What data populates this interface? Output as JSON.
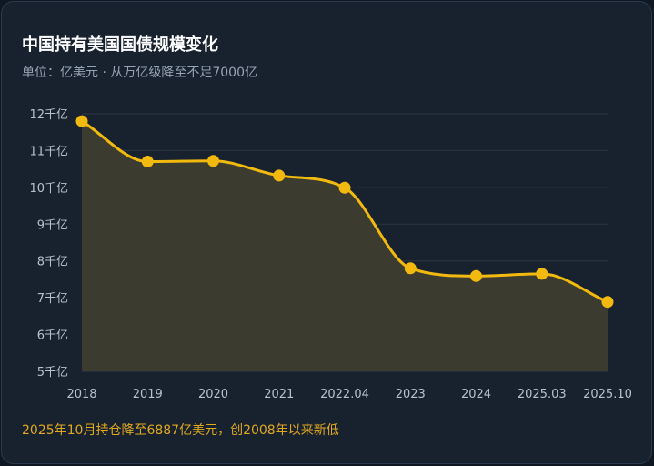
{
  "card": {
    "title": "中国持有美国国债规模变化",
    "subtitle": "单位：亿美元 · 从万亿级降至不足7000亿",
    "footnote": "2025年10月持仓降至6887亿美元，创2008年以来新低"
  },
  "colors": {
    "background": "#18222f",
    "line": "#f2b90f",
    "area_fill": "#3b3b2f",
    "grid": "#2b3644",
    "footnote": "#e2a820"
  },
  "chart_data": {
    "type": "area",
    "categories": [
      "2018",
      "2019",
      "2020",
      "2021",
      "2022.04",
      "2023",
      "2024",
      "2025.03",
      "2025.10"
    ],
    "values": [
      11800,
      10700,
      10720,
      10320,
      9990,
      7800,
      7590,
      7650,
      6887
    ],
    "unit": "亿美元",
    "y_ticks": [
      {
        "value": 5000,
        "label": "5千亿"
      },
      {
        "value": 6000,
        "label": "6千亿"
      },
      {
        "value": 7000,
        "label": "7千亿"
      },
      {
        "value": 8000,
        "label": "8千亿"
      },
      {
        "value": 9000,
        "label": "9千亿"
      },
      {
        "value": 10000,
        "label": "10千亿"
      },
      {
        "value": 11000,
        "label": "11千亿"
      },
      {
        "value": 12000,
        "label": "12千亿"
      }
    ],
    "ylim": [
      5000,
      12000
    ],
    "grid": true,
    "smooth": true,
    "legend": "none"
  }
}
